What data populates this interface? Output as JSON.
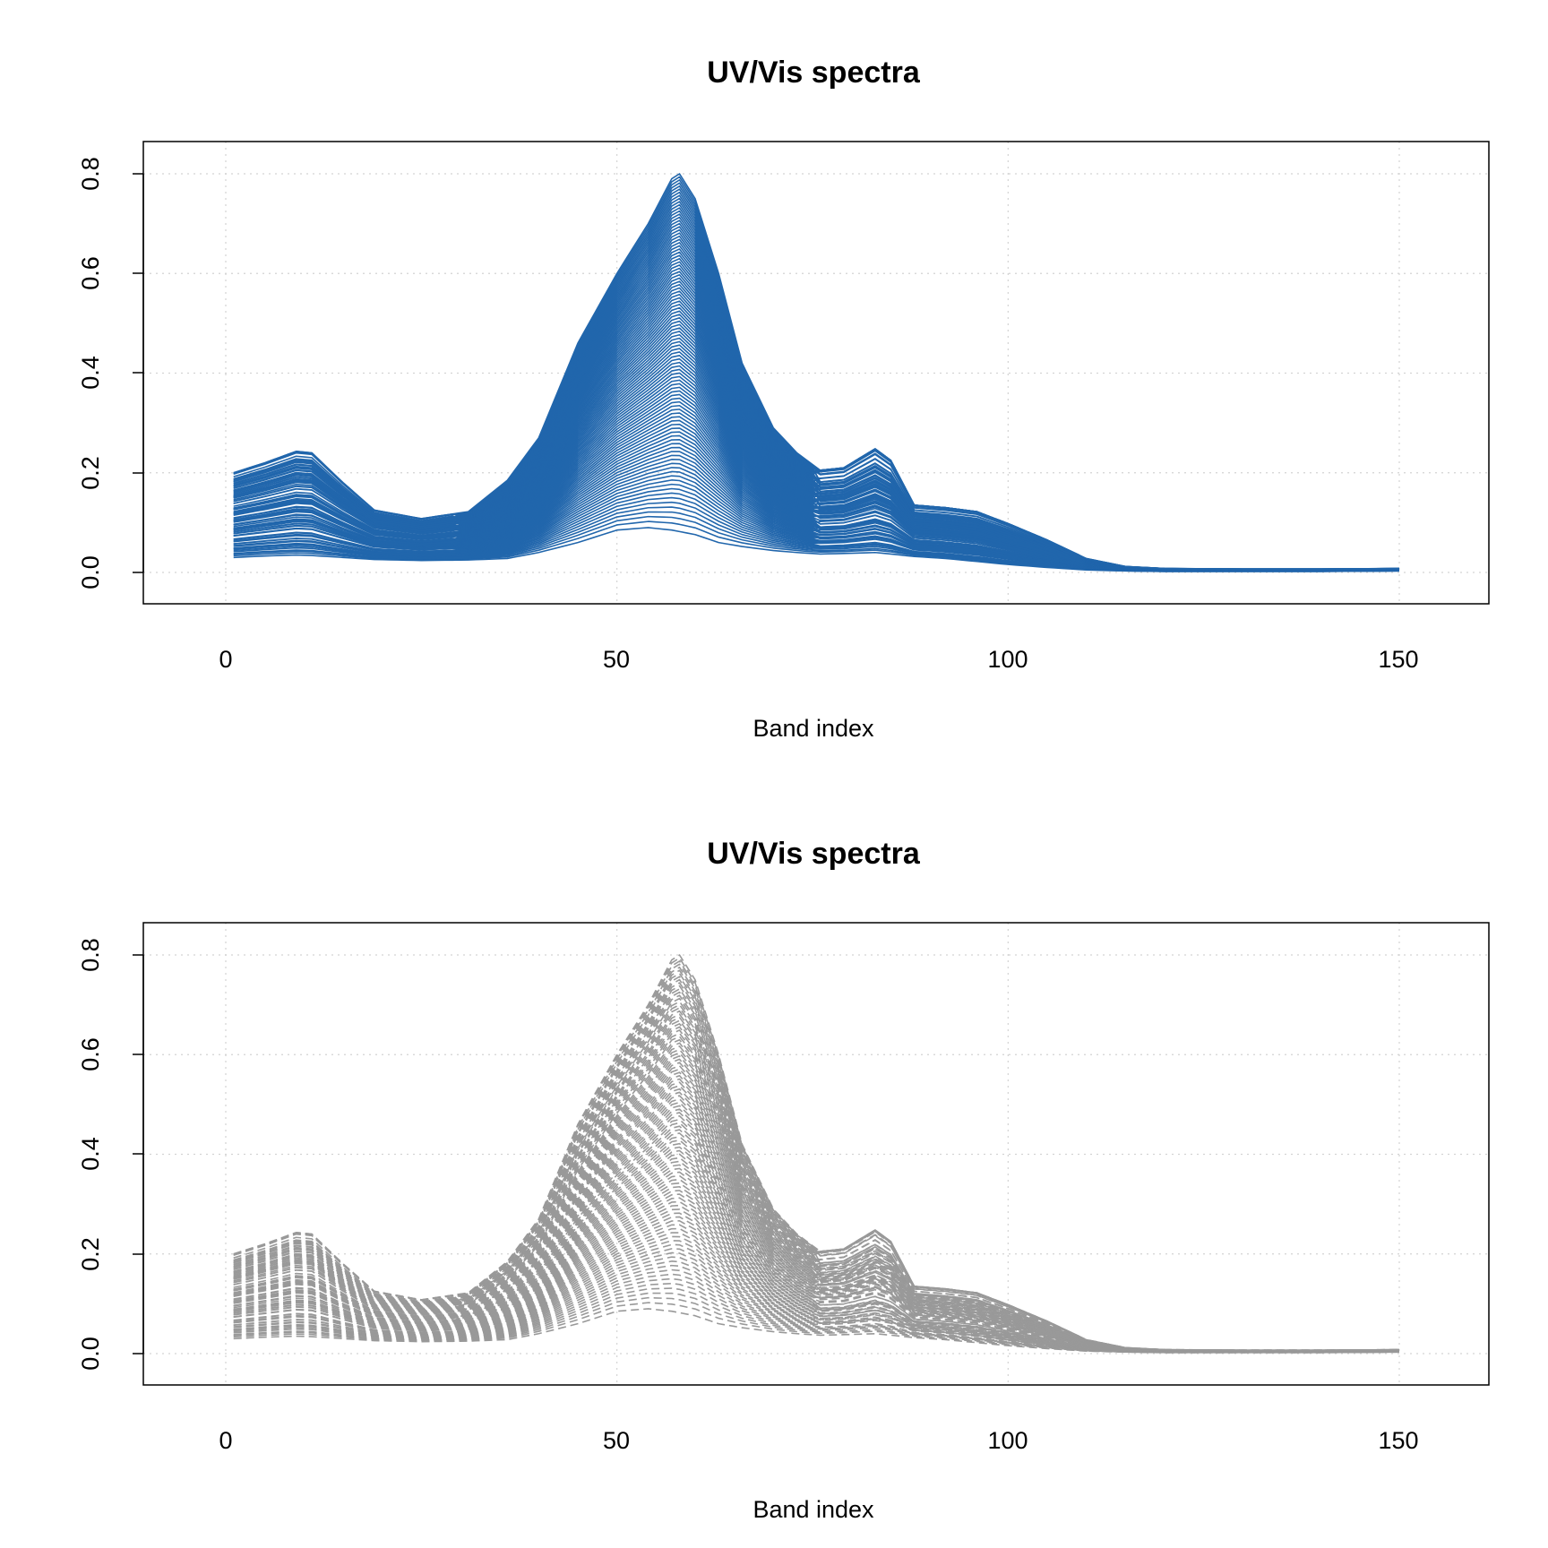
{
  "chart_data": [
    {
      "type": "line",
      "title": "UV/Vis spectra",
      "xlabel": "Band index",
      "ylabel": "",
      "xlim": [
        -20,
        325
      ],
      "ylim": [
        -0.064,
        0.864
      ],
      "xticks": [
        "0",
        "50",
        "100",
        "150"
      ],
      "yticks": [
        "0.0",
        "0.2",
        "0.4",
        "0.6",
        "0.8"
      ],
      "grid": true,
      "line_color": "#2166ac",
      "line_style": "solid",
      "n_series": 100,
      "band_x": [
        1,
        150
      ],
      "anchors": {
        "x": [
          1,
          5,
          9,
          11,
          15,
          19,
          25,
          31,
          36,
          40,
          45,
          50,
          54,
          57,
          58,
          60,
          63,
          66,
          70,
          73,
          76,
          79,
          83,
          85,
          88,
          92,
          96,
          100,
          105,
          110,
          115,
          120,
          130,
          140,
          150
        ],
        "max_envelope": [
          0.2,
          0.22,
          0.243,
          0.24,
          0.18,
          0.125,
          0.108,
          0.122,
          0.185,
          0.27,
          0.46,
          0.6,
          0.7,
          0.79,
          0.8,
          0.75,
          0.6,
          0.42,
          0.29,
          0.24,
          0.205,
          0.21,
          0.248,
          0.225,
          0.135,
          0.13,
          0.122,
          0.098,
          0.065,
          0.028,
          0.012,
          0.008,
          0.007,
          0.007,
          0.008
        ],
        "min_envelope": [
          0.03,
          0.033,
          0.035,
          0.034,
          0.03,
          0.026,
          0.024,
          0.025,
          0.028,
          0.04,
          0.06,
          0.085,
          0.09,
          0.085,
          0.082,
          0.076,
          0.06,
          0.052,
          0.044,
          0.04,
          0.037,
          0.038,
          0.04,
          0.037,
          0.032,
          0.028,
          0.022,
          0.016,
          0.01,
          0.005,
          0.003,
          0.002,
          0.002,
          0.002,
          0.003
        ]
      }
    },
    {
      "type": "line",
      "title": "UV/Vis spectra",
      "xlabel": "Band index",
      "ylabel": "",
      "xlim": [
        -20,
        325
      ],
      "ylim": [
        -0.064,
        0.864
      ],
      "xticks": [
        "0",
        "50",
        "100",
        "150"
      ],
      "yticks": [
        "0.0",
        "0.2",
        "0.4",
        "0.6",
        "0.8"
      ],
      "grid": true,
      "line_color": "#999999",
      "line_style": "dashed",
      "n_series": 100,
      "band_x": [
        1,
        150
      ],
      "anchors": {
        "x": [
          1,
          5,
          9,
          11,
          15,
          19,
          25,
          31,
          36,
          40,
          45,
          50,
          54,
          57,
          58,
          60,
          63,
          66,
          70,
          73,
          76,
          79,
          83,
          85,
          88,
          92,
          96,
          100,
          105,
          110,
          115,
          120,
          130,
          140,
          150
        ],
        "max_envelope": [
          0.2,
          0.22,
          0.243,
          0.24,
          0.18,
          0.125,
          0.108,
          0.122,
          0.185,
          0.27,
          0.46,
          0.6,
          0.7,
          0.79,
          0.8,
          0.75,
          0.6,
          0.42,
          0.29,
          0.24,
          0.205,
          0.21,
          0.248,
          0.225,
          0.135,
          0.13,
          0.122,
          0.098,
          0.065,
          0.028,
          0.012,
          0.008,
          0.007,
          0.007,
          0.008
        ],
        "min_envelope": [
          0.03,
          0.033,
          0.035,
          0.034,
          0.03,
          0.026,
          0.024,
          0.025,
          0.028,
          0.04,
          0.06,
          0.085,
          0.09,
          0.085,
          0.082,
          0.076,
          0.06,
          0.052,
          0.044,
          0.04,
          0.037,
          0.038,
          0.04,
          0.037,
          0.032,
          0.028,
          0.022,
          0.016,
          0.01,
          0.005,
          0.003,
          0.002,
          0.002,
          0.002,
          0.003
        ]
      }
    }
  ]
}
